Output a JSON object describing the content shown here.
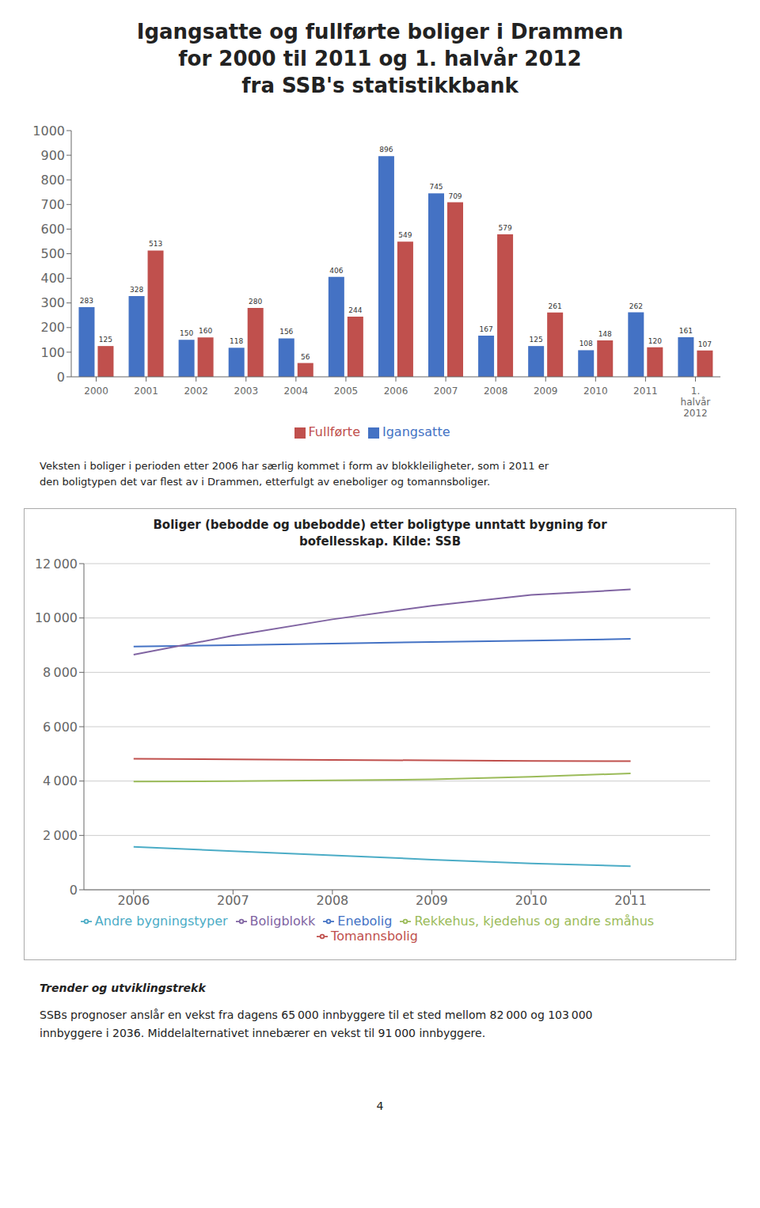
{
  "chart_data": [
    {
      "type": "bar",
      "title": "Igangsatte og fullførte boliger i Drammen\nfor 2000 til 2011 og 1.  halvår 2012\nfra SSB's statistikkbank",
      "categories": [
        "2000",
        "2001",
        "2002",
        "2003",
        "2004",
        "2005",
        "2006",
        "2007",
        "2008",
        "2009",
        "2010",
        "2011",
        "1.\nhalvår\n2012"
      ],
      "series": [
        {
          "name": "Igangsatte",
          "color": "#4472C4",
          "values": [
            283,
            328,
            150,
            118,
            156,
            406,
            896,
            745,
            167,
            125,
            108,
            262,
            161
          ]
        },
        {
          "name": "Fullførte",
          "color": "#C0504D",
          "values": [
            125,
            513,
            160,
            280,
            56,
            244,
            549,
            709,
            579,
            261,
            148,
            120,
            107
          ]
        }
      ],
      "ylim": [
        0,
        1000
      ],
      "yticks": [
        0,
        100,
        200,
        300,
        400,
        500,
        600,
        700,
        800,
        900,
        1000
      ],
      "grid": false,
      "legend": "bottom",
      "data_labels": true,
      "annotations": [
        "Veksten i boliger i perioden etter 2006 har særlig kommet i form av blokkleiligheter, som i 2011 er",
        "den boligtypen det var flest av i Drammen, etterfulgt av eneboliger og tomannsboliger."
      ]
    },
    {
      "type": "line",
      "title": "Boliger (bebodde og ubebodde) etter boligtype unntatt bygning for\nbofellesskap. Kilde: SSB",
      "x": [
        2006,
        2007,
        2008,
        2009,
        2010,
        2011
      ],
      "series": [
        {
          "name": "Enebolig",
          "color": "#4472C4",
          "values": [
            8950,
            9000,
            9060,
            9120,
            9170,
            9230
          ]
        },
        {
          "name": "Tomannsbolig",
          "color": "#C0504D",
          "values": [
            4820,
            4800,
            4780,
            4760,
            4740,
            4730
          ]
        },
        {
          "name": "Rekkehus, kjedehus og andre småhus",
          "color": "#9BBB59",
          "values": [
            3980,
            4000,
            4030,
            4060,
            4160,
            4280
          ]
        },
        {
          "name": "Boligblokk",
          "color": "#8064A2",
          "values": [
            8650,
            9350,
            9950,
            10450,
            10850,
            11050
          ]
        },
        {
          "name": "Andre bygningstyper",
          "color": "#4BACC6",
          "values": [
            1580,
            1420,
            1270,
            1110,
            970,
            870
          ]
        }
      ],
      "xlim": [
        2005.5,
        2011.8
      ],
      "xticks": [
        2006,
        2007,
        2008,
        2009,
        2010,
        2011
      ],
      "ylim": [
        0,
        12000
      ],
      "yticks": [
        0,
        {
          "value": 2000,
          "label": "2 000"
        },
        {
          "value": 4000,
          "label": "4 000"
        },
        {
          "value": 6000,
          "label": "6 000"
        },
        {
          "value": 8000,
          "label": "8 000"
        },
        {
          "value": 10000,
          "label": "10 000"
        },
        {
          "value": 12000,
          "label": "12 000"
        }
      ],
      "grid": true,
      "legend": "bottom",
      "annotations": [
        "Trender og utviklingstrekk",
        "SSBs prognoser anslår en vekst fra dagens 65 000 innbyggere til et sted mellom 82 000 og 103 000",
        "innbyggere i 2036. Middelalternativet innebærer en vekst til 91 000 innbyggere.",
        "4"
      ]
    }
  ]
}
